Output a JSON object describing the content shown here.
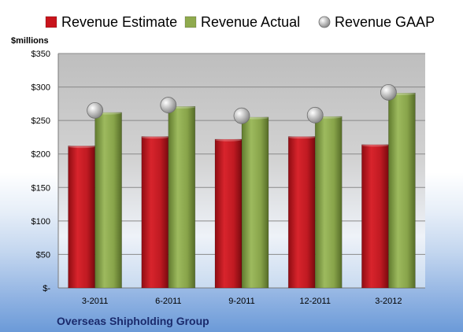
{
  "chart_data": {
    "type": "bar",
    "title": "",
    "unit_label": "$millions",
    "categories": [
      "3-2011",
      "6-2011",
      "9-2011",
      "12-2011",
      "3-2012"
    ],
    "series": [
      {
        "name": "Revenue Estimate",
        "kind": "bar",
        "color": "#c8141c",
        "values": [
          212,
          226,
          222,
          226,
          214
        ]
      },
      {
        "name": "Revenue Actual",
        "kind": "bar",
        "color": "#8faa4e",
        "values": [
          262,
          271,
          255,
          256,
          291
        ]
      },
      {
        "name": "Revenue GAAP",
        "kind": "marker",
        "color": "#b8b8b8",
        "values": [
          265,
          273,
          257,
          258,
          292
        ]
      }
    ],
    "ylim": [
      0,
      350
    ],
    "y_ticks": [
      0,
      50,
      100,
      150,
      200,
      250,
      300,
      350
    ],
    "y_tick_labels": [
      "$-",
      "$50",
      "$100",
      "$150",
      "$200",
      "$250",
      "$300",
      "$350"
    ],
    "grid": true,
    "legend_position": "top"
  },
  "footer": {
    "company_name": "Overseas Shipholding Group"
  }
}
